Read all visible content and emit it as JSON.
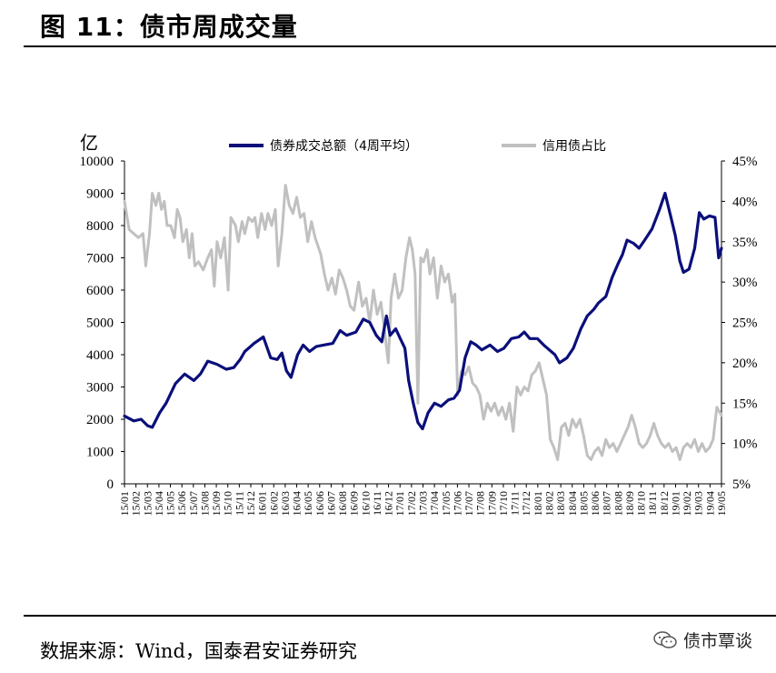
{
  "header": {
    "title": "图 11：债市周成交量"
  },
  "footer": {
    "source": "数据来源：Wind，国泰君安证券研究",
    "brand": "债市覃谈"
  },
  "colors": {
    "volume": "#0a0f7a",
    "credit": "#c0c0c0"
  },
  "chart_data": {
    "type": "line",
    "unit_label": "亿",
    "y_left": {
      "ticks": [
        0,
        1000,
        2000,
        3000,
        4000,
        5000,
        6000,
        7000,
        8000,
        9000,
        10000
      ],
      "range": [
        0,
        10000
      ]
    },
    "y_right": {
      "ticks": [
        "5%",
        "10%",
        "15%",
        "20%",
        "25%",
        "30%",
        "35%",
        "40%",
        "45%"
      ],
      "range": [
        5,
        45
      ]
    },
    "x_tick_labels": [
      "15/01",
      "15/02",
      "15/03",
      "15/04",
      "15/05",
      "15/06",
      "15/07",
      "15/08",
      "15/09",
      "15/10",
      "15/11",
      "15/12",
      "16/01",
      "16/02",
      "16/03",
      "16/04",
      "16/05",
      "16/06",
      "16/07",
      "16/08",
      "16/09",
      "16/10",
      "16/11",
      "16/12",
      "17/01",
      "17/02",
      "17/03",
      "17/04",
      "17/05",
      "17/06",
      "17/07",
      "17/08",
      "17/09",
      "17/10",
      "17/11",
      "17/12",
      "18/01",
      "18/02",
      "18/03",
      "18/04",
      "18/05",
      "18/06",
      "18/07",
      "18/08",
      "18/09",
      "18/10",
      "18/11",
      "18/12",
      "19/01",
      "19/02",
      "19/03",
      "19/04",
      "19/05"
    ],
    "series": [
      {
        "name": "债券成交总额（4周平均）",
        "axis": "left",
        "color": "#0a0f7a",
        "points": [
          [
            0,
            2100
          ],
          [
            1,
            1950
          ],
          [
            1.8,
            2000
          ],
          [
            2.5,
            1800
          ],
          [
            3,
            1750
          ],
          [
            3.8,
            2200
          ],
          [
            4.5,
            2500
          ],
          [
            5.5,
            3100
          ],
          [
            6.5,
            3400
          ],
          [
            7.5,
            3200
          ],
          [
            8.2,
            3400
          ],
          [
            9,
            3800
          ],
          [
            10,
            3700
          ],
          [
            11,
            3550
          ],
          [
            11.8,
            3600
          ],
          [
            12.5,
            3850
          ],
          [
            13,
            4100
          ],
          [
            14,
            4350
          ],
          [
            15,
            4550
          ],
          [
            15.8,
            3900
          ],
          [
            16.5,
            3850
          ],
          [
            17,
            4050
          ],
          [
            17.5,
            3500
          ],
          [
            18,
            3300
          ],
          [
            18.7,
            4000
          ],
          [
            19.3,
            4300
          ],
          [
            20,
            4100
          ],
          [
            20.7,
            4250
          ],
          [
            21.5,
            4300
          ],
          [
            22.5,
            4350
          ],
          [
            23.3,
            4750
          ],
          [
            24,
            4600
          ],
          [
            25,
            4700
          ],
          [
            25.8,
            5100
          ],
          [
            26.5,
            5000
          ],
          [
            27.2,
            4600
          ],
          [
            27.8,
            4400
          ],
          [
            28.3,
            5200
          ],
          [
            28.7,
            4600
          ],
          [
            29.3,
            4800
          ],
          [
            29.8,
            4500
          ],
          [
            30.3,
            4200
          ],
          [
            30.7,
            3200
          ],
          [
            31.2,
            2500
          ],
          [
            31.7,
            1900
          ],
          [
            32.2,
            1700
          ],
          [
            32.8,
            2200
          ],
          [
            33.5,
            2500
          ],
          [
            34.2,
            2400
          ],
          [
            35,
            2600
          ],
          [
            35.6,
            2650
          ],
          [
            36.2,
            2900
          ],
          [
            36.8,
            3900
          ],
          [
            37.4,
            4400
          ],
          [
            38,
            4300
          ],
          [
            38.6,
            4150
          ],
          [
            39.5,
            4300
          ],
          [
            40.3,
            4100
          ],
          [
            41,
            4200
          ],
          [
            41.8,
            4500
          ],
          [
            42.6,
            4550
          ],
          [
            43.2,
            4700
          ],
          [
            43.8,
            4500
          ],
          [
            44.6,
            4500
          ],
          [
            45.3,
            4300
          ],
          [
            45.9,
            4150
          ],
          [
            46.5,
            4000
          ],
          [
            47,
            3750
          ],
          [
            47.8,
            3900
          ],
          [
            48.5,
            4200
          ],
          [
            49.3,
            4800
          ],
          [
            50,
            5200
          ],
          [
            50.7,
            5400
          ],
          [
            51.2,
            5600
          ],
          [
            52,
            5800
          ],
          [
            52.7,
            6400
          ],
          [
            53.3,
            6800
          ],
          [
            53.8,
            7100
          ],
          [
            54.3,
            7550
          ],
          [
            55,
            7450
          ],
          [
            55.6,
            7300
          ],
          [
            56.2,
            7550
          ],
          [
            57,
            7900
          ],
          [
            57.8,
            8500
          ],
          [
            58.4,
            9000
          ],
          [
            59,
            8300
          ],
          [
            59.5,
            7700
          ],
          [
            60,
            6900
          ],
          [
            60.4,
            6550
          ],
          [
            61,
            6650
          ],
          [
            61.6,
            7300
          ],
          [
            62.1,
            8400
          ],
          [
            62.6,
            8200
          ],
          [
            63.2,
            8300
          ],
          [
            63.8,
            8250
          ],
          [
            64.2,
            7000
          ],
          [
            64.5,
            7300
          ]
        ]
      },
      {
        "name": "信用债占比",
        "axis": "right",
        "color": "#c0c0c0",
        "points": [
          [
            0,
            40
          ],
          [
            0.5,
            36.5
          ],
          [
            1,
            36
          ],
          [
            1.5,
            35.5
          ],
          [
            2,
            36
          ],
          [
            2.3,
            32
          ],
          [
            2.7,
            36
          ],
          [
            3,
            41
          ],
          [
            3.4,
            39.5
          ],
          [
            3.7,
            41
          ],
          [
            4,
            39
          ],
          [
            4.3,
            40
          ],
          [
            4.6,
            37
          ],
          [
            5,
            37
          ],
          [
            5.4,
            35.5
          ],
          [
            5.7,
            39
          ],
          [
            6,
            38
          ],
          [
            6.3,
            35
          ],
          [
            6.7,
            36.5
          ],
          [
            7,
            33
          ],
          [
            7.3,
            36
          ],
          [
            7.6,
            32
          ],
          [
            8,
            32.5
          ],
          [
            8.5,
            31.5
          ],
          [
            9,
            33
          ],
          [
            9.4,
            34
          ],
          [
            9.7,
            29.5
          ],
          [
            10,
            35
          ],
          [
            10.4,
            33
          ],
          [
            10.8,
            35.5
          ],
          [
            11.2,
            29
          ],
          [
            11.5,
            38
          ],
          [
            12,
            37
          ],
          [
            12.3,
            35
          ],
          [
            12.7,
            37.5
          ],
          [
            13,
            36
          ],
          [
            13.4,
            38
          ],
          [
            13.8,
            37.5
          ],
          [
            14.1,
            38
          ],
          [
            14.4,
            35.5
          ],
          [
            14.8,
            38.5
          ],
          [
            15.2,
            36.5
          ],
          [
            15.5,
            38.5
          ],
          [
            15.9,
            37
          ],
          [
            16.3,
            39
          ],
          [
            16.6,
            32
          ],
          [
            17,
            36
          ],
          [
            17.4,
            42
          ],
          [
            17.8,
            39.5
          ],
          [
            18.2,
            38.5
          ],
          [
            18.6,
            40.5
          ],
          [
            19,
            38
          ],
          [
            19.4,
            38.5
          ],
          [
            19.8,
            35
          ],
          [
            20.2,
            37.5
          ],
          [
            20.6,
            35.5
          ],
          [
            21.2,
            33.5
          ],
          [
            21.6,
            31
          ],
          [
            22,
            29
          ],
          [
            22.4,
            30.5
          ],
          [
            22.8,
            28.5
          ],
          [
            23.2,
            31.5
          ],
          [
            23.6,
            30.5
          ],
          [
            24,
            29
          ],
          [
            24.4,
            27
          ],
          [
            24.8,
            26.5
          ],
          [
            25.3,
            30
          ],
          [
            25.7,
            27
          ],
          [
            26.1,
            28
          ],
          [
            26.5,
            25
          ],
          [
            26.9,
            29
          ],
          [
            27.3,
            26
          ],
          [
            27.7,
            27.5
          ],
          [
            28.1,
            24
          ],
          [
            28.5,
            20
          ],
          [
            28.8,
            28
          ],
          [
            29.2,
            31
          ],
          [
            29.6,
            28
          ],
          [
            30,
            29
          ],
          [
            30.4,
            33
          ],
          [
            30.8,
            35.5
          ],
          [
            31.1,
            34
          ],
          [
            31.4,
            31
          ],
          [
            31.7,
            15
          ],
          [
            32,
            33
          ],
          [
            32.3,
            32.5
          ],
          [
            32.7,
            34
          ],
          [
            33,
            31
          ],
          [
            33.4,
            33
          ],
          [
            33.8,
            28
          ],
          [
            34.2,
            32
          ],
          [
            34.6,
            30
          ],
          [
            35,
            31
          ],
          [
            35.4,
            27.5
          ],
          [
            35.7,
            28.5
          ],
          [
            36,
            16
          ],
          [
            36.4,
            19
          ],
          [
            36.8,
            18.5
          ],
          [
            37.2,
            19.5
          ],
          [
            37.6,
            17.5
          ],
          [
            38,
            17
          ],
          [
            38.4,
            16
          ],
          [
            38.8,
            13
          ],
          [
            39.2,
            15
          ],
          [
            39.6,
            14
          ],
          [
            40,
            15
          ],
          [
            40.4,
            13.5
          ],
          [
            40.8,
            14.5
          ],
          [
            41.2,
            13
          ],
          [
            41.6,
            15
          ],
          [
            42,
            11.5
          ],
          [
            42.4,
            17
          ],
          [
            42.8,
            16
          ],
          [
            43.2,
            17
          ],
          [
            43.6,
            16.5
          ],
          [
            44,
            18.5
          ],
          [
            44.4,
            19
          ],
          [
            44.8,
            20
          ],
          [
            45.2,
            18
          ],
          [
            45.6,
            16
          ],
          [
            46,
            10.5
          ],
          [
            46.4,
            9.5
          ],
          [
            46.8,
            8
          ],
          [
            47.2,
            12
          ],
          [
            47.6,
            12.5
          ],
          [
            48,
            11
          ],
          [
            48.4,
            13
          ],
          [
            48.8,
            12
          ],
          [
            49.2,
            13
          ],
          [
            49.6,
            11
          ],
          [
            50,
            8.5
          ],
          [
            50.4,
            8
          ],
          [
            50.8,
            9
          ],
          [
            51.2,
            9.5
          ],
          [
            51.6,
            8.5
          ],
          [
            52,
            10.5
          ],
          [
            52.4,
            9.5
          ],
          [
            52.8,
            10
          ],
          [
            53.2,
            9
          ],
          [
            53.6,
            10
          ],
          [
            54,
            11
          ],
          [
            54.4,
            12
          ],
          [
            54.8,
            13.5
          ],
          [
            55.2,
            12
          ],
          [
            55.6,
            10
          ],
          [
            56,
            9.5
          ],
          [
            56.4,
            10
          ],
          [
            56.8,
            11
          ],
          [
            57.2,
            12.5
          ],
          [
            57.6,
            11
          ],
          [
            58,
            10
          ],
          [
            58.4,
            9.5
          ],
          [
            58.8,
            10
          ],
          [
            59.2,
            9
          ],
          [
            59.6,
            9.5
          ],
          [
            60,
            8
          ],
          [
            60.4,
            9.5
          ],
          [
            60.8,
            10
          ],
          [
            61.2,
            9.5
          ],
          [
            61.6,
            10.5
          ],
          [
            62,
            9
          ],
          [
            62.4,
            10
          ],
          [
            62.8,
            9
          ],
          [
            63.2,
            9.5
          ],
          [
            63.6,
            10.5
          ],
          [
            64,
            14.5
          ],
          [
            64.5,
            13.5
          ]
        ]
      }
    ],
    "x_range": [
      0,
      64.5
    ]
  }
}
